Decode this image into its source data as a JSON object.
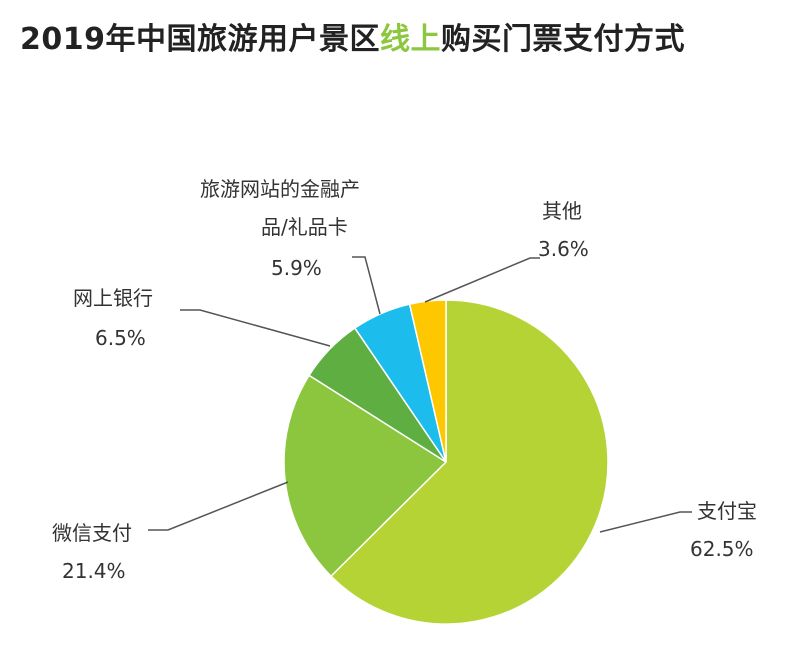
{
  "title": {
    "prefix": "2019年中国旅游用户景区",
    "highlight": "线上",
    "suffix": "购买门票支付方式"
  },
  "colors": {
    "title_highlight": "#8dc63f",
    "leader_line": "#555555"
  },
  "chart_data": {
    "type": "pie",
    "title": "2019年中国旅游用户景区线上购买门票支付方式",
    "unit": "%",
    "start_angle_deg": 0,
    "direction": "clockwise",
    "slices": [
      {
        "label": "支付宝",
        "value": 62.5,
        "value_label": "62.5%",
        "color": "#b5d335"
      },
      {
        "label": "微信支付",
        "value": 21.4,
        "value_label": "21.4%",
        "color": "#8cc63e"
      },
      {
        "label": "网上银行",
        "value": 6.5,
        "value_label": "6.5%",
        "color": "#5fae42"
      },
      {
        "label": "旅游网站的金融产品/礼品卡",
        "label_lines": [
          "旅游网站的金融产",
          "品/礼品卡"
        ],
        "value": 5.9,
        "value_label": "5.9%",
        "color": "#1cbcec"
      },
      {
        "label": "其他",
        "value": 3.6,
        "value_label": "3.6%",
        "color": "#ffc700"
      }
    ]
  }
}
